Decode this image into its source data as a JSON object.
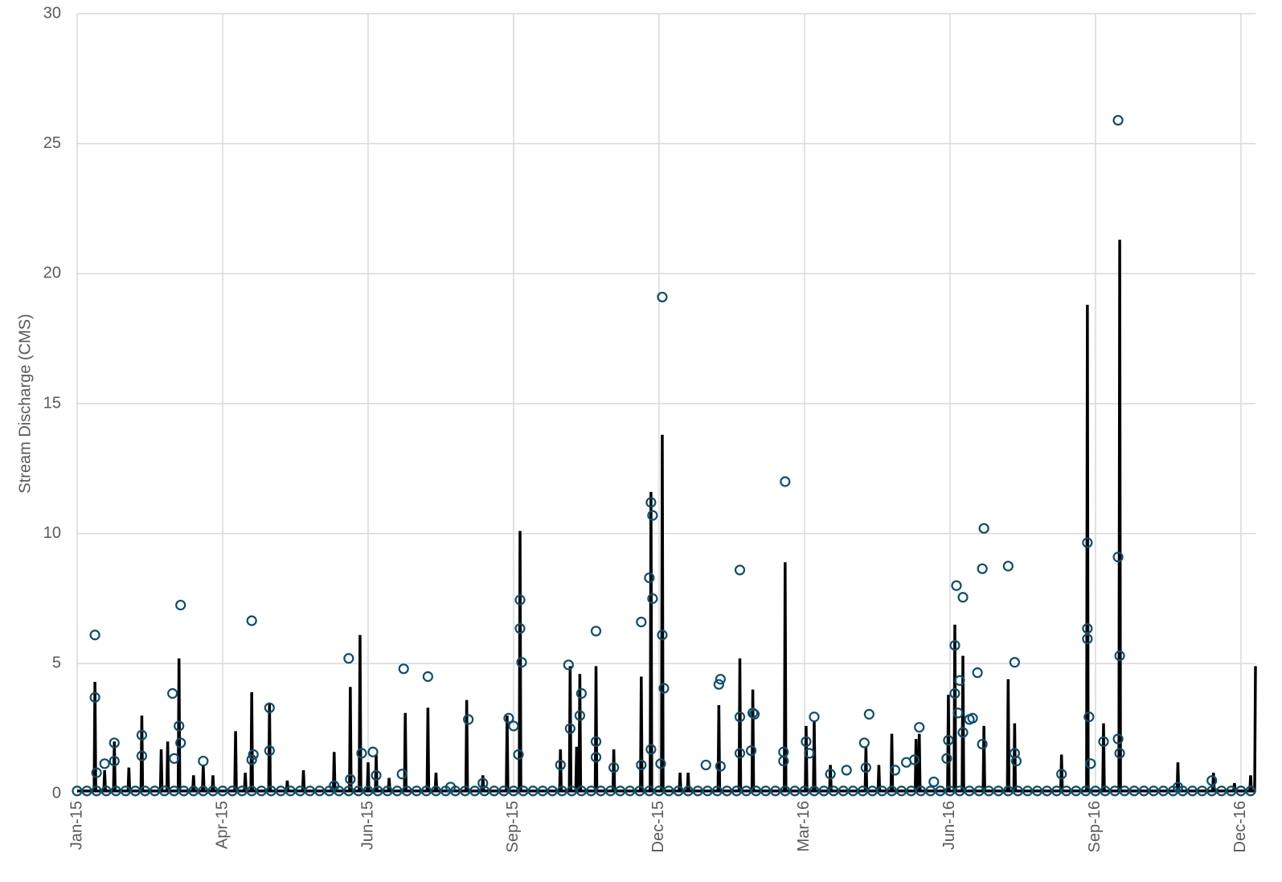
{
  "chart_data": {
    "type": "line",
    "y_label": "Stream Discharge (CMS)",
    "xlim": [
      42005,
      42734
    ],
    "xticks": [
      {
        "value": 42005,
        "label": "Jan-15"
      },
      {
        "value": 42095,
        "label": "Apr-15"
      },
      {
        "value": 42185,
        "label": "Jun-15"
      },
      {
        "value": 42275,
        "label": "Sep-15"
      },
      {
        "value": 42365,
        "label": "Dec-15"
      },
      {
        "value": 42455,
        "label": "Mar-16"
      },
      {
        "value": 42545,
        "label": "Jun-16"
      },
      {
        "value": 42635,
        "label": "Sep-16"
      },
      {
        "value": 42725,
        "label": "Dec-16"
      }
    ],
    "ylim": [
      0,
      30
    ],
    "yticks": [
      0,
      5,
      10,
      15,
      20,
      25,
      30
    ],
    "grid": true,
    "series": [
      {
        "type": "line",
        "color": "#000000",
        "x": [
          42005,
          42015.5,
          42016,
          42016.5,
          42021.5,
          42022,
          42022.5,
          42027.5,
          42028,
          42028.5,
          42036.5,
          42037,
          42037.5,
          42044.5,
          42045,
          42045.5,
          42056.5,
          42057,
          42057.5,
          42060.5,
          42061,
          42061.5,
          42067.5,
          42068,
          42068.5,
          42076.5,
          42077,
          42077.5,
          42082.5,
          42083,
          42083.5,
          42088.5,
          42089,
          42089.5,
          42102.5,
          42103,
          42103.5,
          42108.5,
          42109,
          42109.5,
          42112.5,
          42113,
          42113.5,
          42123.5,
          42124,
          42124.5,
          42134.5,
          42135,
          42135.5,
          42144.5,
          42145,
          42145.5,
          42163.5,
          42164,
          42164.5,
          42173.5,
          42174,
          42174.5,
          42179.5,
          42180,
          42180.5,
          42184.5,
          42185,
          42185.5,
          42189.5,
          42190,
          42190.5,
          42197.5,
          42198,
          42198.5,
          42207.5,
          42208,
          42208.5,
          42221.5,
          42222,
          42222.5,
          42226.5,
          42227,
          42227.5,
          42245.5,
          42246,
          42246.5,
          42255.5,
          42256,
          42256.5,
          42270.5,
          42271,
          42271.5,
          42278.5,
          42279,
          42279.5,
          42303.5,
          42304,
          42304.5,
          42309.5,
          42310,
          42310.5,
          42313.5,
          42314,
          42314.5,
          42315.5,
          42316,
          42316.5,
          42325.5,
          42326,
          42326.5,
          42336.5,
          42337,
          42337.5,
          42353.5,
          42354,
          42354.5,
          42359.5,
          42360,
          42360.5,
          42366.5,
          42367,
          42367.5,
          42377.5,
          42378,
          42378.5,
          42382.5,
          42383,
          42383.5,
          42401.5,
          42402,
          42402.5,
          42414.5,
          42415,
          42415.5,
          42422.5,
          42423,
          42423.5,
          42442.5,
          42443,
          42443.5,
          42455.5,
          42456,
          42456.5,
          42460.5,
          42461,
          42461.5,
          42470.5,
          42471,
          42471.5,
          42492.5,
          42493,
          42493.5,
          42500.5,
          42501,
          42501.5,
          42508.5,
          42509,
          42509.5,
          42523.5,
          42524,
          42524.5,
          42525.5,
          42526,
          42526.5,
          42543.5,
          42544,
          42544.5,
          42547.5,
          42548,
          42548.5,
          42552.5,
          42553,
          42553.5,
          42565.5,
          42566,
          42566.5,
          42580.5,
          42581,
          42581.5,
          42584.5,
          42585,
          42585.5,
          42613.5,
          42614,
          42614.5,
          42629.5,
          42630,
          42630.5,
          42639.5,
          42640,
          42640.5,
          42649.5,
          42650,
          42650.5,
          42685.5,
          42686,
          42686.5,
          42707.5,
          42708,
          42708.5,
          42720.5,
          42721,
          42721.5,
          42730.5,
          42731,
          42731.5,
          42733.5,
          42734
        ],
        "values": [
          0.1,
          0.1,
          4.3,
          0.1,
          0.1,
          0.9,
          0.1,
          0.1,
          2.0,
          0.1,
          0.1,
          1.0,
          0.1,
          0.1,
          3.0,
          0.1,
          0.1,
          1.7,
          0.1,
          0.1,
          2.0,
          0.1,
          0.1,
          5.2,
          0.1,
          0.1,
          0.7,
          0.1,
          0.1,
          1.1,
          0.1,
          0.1,
          0.7,
          0.1,
          0.1,
          2.4,
          0.1,
          0.1,
          0.8,
          0.1,
          0.1,
          3.9,
          0.1,
          0.1,
          3.5,
          0.1,
          0.1,
          0.5,
          0.1,
          0.1,
          0.9,
          0.1,
          0.1,
          1.6,
          0.1,
          0.1,
          4.1,
          0.1,
          0.1,
          6.1,
          0.1,
          0.1,
          1.2,
          0.1,
          0.1,
          1.5,
          0.1,
          0.1,
          0.6,
          0.1,
          0.1,
          3.1,
          0.1,
          0.1,
          3.3,
          0.1,
          0.1,
          0.8,
          0.1,
          0.1,
          3.6,
          0.1,
          0.1,
          0.7,
          0.1,
          0.1,
          3.0,
          0.1,
          0.1,
          10.1,
          0.1,
          0.1,
          1.7,
          0.1,
          0.1,
          4.9,
          0.1,
          0.1,
          1.8,
          0.1,
          0.1,
          4.6,
          0.1,
          0.1,
          4.9,
          0.1,
          0.1,
          1.7,
          0.1,
          0.1,
          4.5,
          0.1,
          0.1,
          11.6,
          0.1,
          0.1,
          13.8,
          0.1,
          0.1,
          0.8,
          0.1,
          0.1,
          0.8,
          0.1,
          0.1,
          3.4,
          0.1,
          0.1,
          5.2,
          0.1,
          0.1,
          4.0,
          0.1,
          0.1,
          8.9,
          0.1,
          0.1,
          2.6,
          0.1,
          0.1,
          2.8,
          0.1,
          0.1,
          1.1,
          0.1,
          0.1,
          1.8,
          0.1,
          0.1,
          1.1,
          0.1,
          0.1,
          2.3,
          0.1,
          0.1,
          2.1,
          0.1,
          0.1,
          2.3,
          0.1,
          0.1,
          3.8,
          0.1,
          0.1,
          6.5,
          0.1,
          0.1,
          5.3,
          0.1,
          0.1,
          2.6,
          0.1,
          0.1,
          4.4,
          0.1,
          0.1,
          2.7,
          0.1,
          0.1,
          1.5,
          0.1,
          0.1,
          18.8,
          0.1,
          0.1,
          2.7,
          0.1,
          0.1,
          21.3,
          0.1,
          0.1,
          1.2,
          0.1,
          0.1,
          0.8,
          0.1,
          0.1,
          0.4,
          0.1,
          0.1,
          0.7,
          0.1,
          0.1,
          4.9
        ]
      },
      {
        "type": "scatter",
        "color": "#0b4f6c",
        "x": [
          42016,
          42016,
          42017,
          42022,
          42028,
          42028,
          42045,
          42045,
          42064,
          42065,
          42069,
          42068,
          42069,
          42083,
          42113,
          42113,
          42114,
          42124,
          42124,
          42164,
          42173,
          42174,
          42181,
          42188,
          42190,
          42207,
          42206,
          42222,
          42236,
          42247,
          42256,
          42272,
          42275,
          42279,
          42279,
          42280,
          42278,
          42304,
          42309,
          42310,
          42317,
          42316,
          42326,
          42326,
          42326,
          42337,
          42354,
          42359,
          42360,
          42361,
          42361,
          42360,
          42354,
          42367,
          42367,
          42368,
          42366,
          42394,
          42403,
          42402,
          42403,
          42415,
          42415,
          42415,
          42422,
          42423,
          42424,
          42443,
          42442,
          42442,
          42456,
          42461,
          42458,
          42471,
          42481,
          42492,
          42495,
          42493,
          42511,
          42518,
          42523,
          42526,
          42535,
          42543,
          42544,
          42548,
          42548,
          42549,
          42550,
          42551,
          42553,
          42553,
          42557,
          42559,
          42562,
          42565,
          42566,
          42565,
          42581,
          42585,
          42585,
          42586,
          42614,
          42630,
          42630,
          42630,
          42631,
          42632,
          42640,
          42649,
          42649,
          42650,
          42649,
          42650,
          42686,
          42707
        ],
        "values": [
          6.1,
          3.7,
          0.8,
          1.15,
          1.95,
          1.25,
          2.25,
          1.45,
          3.85,
          1.35,
          7.25,
          2.6,
          1.95,
          1.25,
          6.65,
          1.3,
          1.5,
          3.3,
          1.65,
          0.3,
          5.2,
          0.55,
          1.55,
          1.6,
          0.7,
          4.8,
          0.75,
          4.5,
          0.25,
          2.85,
          0.4,
          2.9,
          2.6,
          7.45,
          6.35,
          5.05,
          1.5,
          1.1,
          4.95,
          2.5,
          3.85,
          3.0,
          6.25,
          2.0,
          1.4,
          1.0,
          6.6,
          8.3,
          11.2,
          10.7,
          7.5,
          1.7,
          1.1,
          19.1,
          6.1,
          4.05,
          1.15,
          1.1,
          4.4,
          4.2,
          1.05,
          8.6,
          2.95,
          1.55,
          1.65,
          3.1,
          3.05,
          12.0,
          1.6,
          1.25,
          2.0,
          2.95,
          1.55,
          0.75,
          0.9,
          1.95,
          3.05,
          1.0,
          0.9,
          1.2,
          1.3,
          2.55,
          0.45,
          1.35,
          2.05,
          5.7,
          3.85,
          8.0,
          3.1,
          4.35,
          7.55,
          2.35,
          2.85,
          2.9,
          4.65,
          8.65,
          10.2,
          1.9,
          8.75,
          5.05,
          1.55,
          1.25,
          0.75,
          9.65,
          6.35,
          5.95,
          2.95,
          1.15,
          2.0,
          25.9,
          9.1,
          5.3,
          2.1,
          1.55,
          0.25,
          0.5
        ]
      },
      {
        "type": "scatter",
        "color": "#0b4f6c",
        "x": [
          42005,
          42011,
          42017,
          42023,
          42029,
          42035,
          42041,
          42047,
          42053,
          42059,
          42065,
          42071,
          42077,
          42083,
          42089,
          42095,
          42101,
          42107,
          42113,
          42119,
          42125,
          42131,
          42137,
          42143,
          42149,
          42155,
          42161,
          42167,
          42173,
          42179,
          42185,
          42191,
          42197,
          42203,
          42209,
          42215,
          42221,
          42227,
          42233,
          42239,
          42245,
          42251,
          42257,
          42263,
          42269,
          42275,
          42281,
          42287,
          42293,
          42299,
          42305,
          42311,
          42317,
          42323,
          42329,
          42335,
          42341,
          42347,
          42353,
          42359,
          42365,
          42371,
          42377,
          42383,
          42389,
          42395,
          42401,
          42407,
          42413,
          42419,
          42425,
          42431,
          42437,
          42443,
          42449,
          42455,
          42461,
          42467,
          42473,
          42479,
          42485,
          42491,
          42497,
          42503,
          42509,
          42515,
          42521,
          42527,
          42533,
          42539,
          42545,
          42551,
          42557,
          42563,
          42569,
          42575,
          42581,
          42587,
          42593,
          42599,
          42605,
          42611,
          42617,
          42623,
          42629,
          42635,
          42641,
          42647,
          42653,
          42659,
          42665,
          42671,
          42677,
          42683,
          42689,
          42695,
          42701,
          42707,
          42713,
          42719,
          42725,
          42731
        ],
        "values": [
          0.1,
          0.1,
          0.1,
          0.1,
          0.1,
          0.1,
          0.1,
          0.1,
          0.1,
          0.1,
          0.1,
          0.1,
          0.1,
          0.1,
          0.1,
          0.1,
          0.1,
          0.1,
          0.1,
          0.1,
          0.1,
          0.1,
          0.1,
          0.1,
          0.1,
          0.1,
          0.1,
          0.1,
          0.1,
          0.1,
          0.1,
          0.1,
          0.1,
          0.1,
          0.1,
          0.1,
          0.1,
          0.1,
          0.1,
          0.1,
          0.1,
          0.1,
          0.1,
          0.1,
          0.1,
          0.1,
          0.1,
          0.1,
          0.1,
          0.1,
          0.1,
          0.1,
          0.1,
          0.1,
          0.1,
          0.1,
          0.1,
          0.1,
          0.1,
          0.1,
          0.1,
          0.1,
          0.1,
          0.1,
          0.1,
          0.1,
          0.1,
          0.1,
          0.1,
          0.1,
          0.1,
          0.1,
          0.1,
          0.1,
          0.1,
          0.1,
          0.1,
          0.1,
          0.1,
          0.1,
          0.1,
          0.1,
          0.1,
          0.1,
          0.1,
          0.1,
          0.1,
          0.1,
          0.1,
          0.1,
          0.1,
          0.1,
          0.1,
          0.1,
          0.1,
          0.1,
          0.1,
          0.1,
          0.1,
          0.1,
          0.1,
          0.1,
          0.1,
          0.1,
          0.1,
          0.1,
          0.1,
          0.1,
          0.1,
          0.1,
          0.1,
          0.1,
          0.1,
          0.1,
          0.1,
          0.1,
          0.1,
          0.1,
          0.1,
          0.1,
          0.1,
          0.1
        ]
      }
    ]
  }
}
